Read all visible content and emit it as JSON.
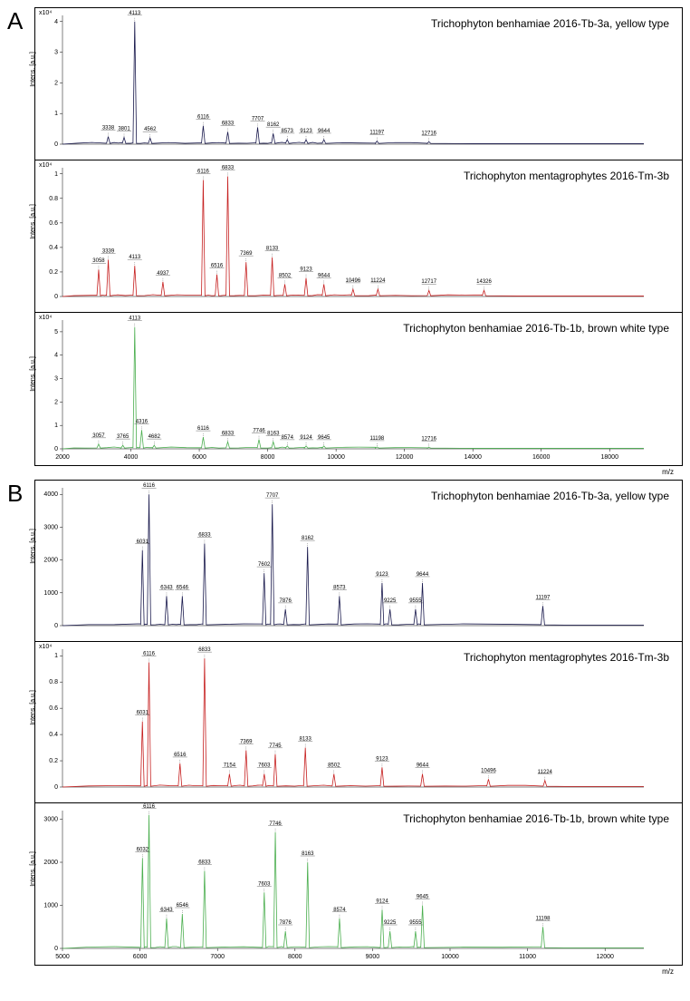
{
  "figureA": {
    "label": "A",
    "xaxis_label": "m/z",
    "xlim": [
      2000,
      19000
    ],
    "xticks": [
      2000,
      4000,
      6000,
      8000,
      10000,
      12000,
      14000,
      16000,
      18000
    ],
    "panels": [
      {
        "title": "Trichophyton benhamiae 2016-Tb-3a, yellow type",
        "color": "#1a1a4d",
        "yaxis_label": "Intens. [a.u.]",
        "yaxis_mult": "x10⁴",
        "ylim": [
          0,
          4.2
        ],
        "yticks": [
          0,
          1,
          2,
          3,
          4
        ],
        "peaks": [
          {
            "mz": 3338,
            "intensity": 0.25,
            "label": "3338"
          },
          {
            "mz": 3801,
            "intensity": 0.22,
            "label": "3801"
          },
          {
            "mz": 4113,
            "intensity": 4.0,
            "label": "4113"
          },
          {
            "mz": 4562,
            "intensity": 0.2,
            "label": "4562"
          },
          {
            "mz": 6116,
            "intensity": 0.6,
            "label": "6116"
          },
          {
            "mz": 6833,
            "intensity": 0.4,
            "label": "6833"
          },
          {
            "mz": 7707,
            "intensity": 0.55,
            "label": "7707"
          },
          {
            "mz": 8162,
            "intensity": 0.35,
            "label": "8162"
          },
          {
            "mz": 8573,
            "intensity": 0.15,
            "label": "8573"
          },
          {
            "mz": 9123,
            "intensity": 0.15,
            "label": "9123"
          },
          {
            "mz": 9644,
            "intensity": 0.15,
            "label": "9644"
          },
          {
            "mz": 11197,
            "intensity": 0.1,
            "label": "11197"
          },
          {
            "mz": 12716,
            "intensity": 0.08,
            "label": "12716"
          }
        ]
      },
      {
        "title": "Trichophyton mentagrophytes 2016-Tm-3b",
        "color": "#c62020",
        "yaxis_label": "Intens. [a.u.]",
        "yaxis_mult": "x10⁴",
        "ylim": [
          0,
          1.05
        ],
        "yticks": [
          0.0,
          0.2,
          0.4,
          0.6,
          0.8,
          1.0
        ],
        "peaks": [
          {
            "mz": 3058,
            "intensity": 0.22,
            "label": "3058"
          },
          {
            "mz": 3339,
            "intensity": 0.3,
            "label": "3339"
          },
          {
            "mz": 4113,
            "intensity": 0.25,
            "label": "4113"
          },
          {
            "mz": 4937,
            "intensity": 0.12,
            "label": "4937"
          },
          {
            "mz": 6116,
            "intensity": 0.95,
            "label": "6116"
          },
          {
            "mz": 6516,
            "intensity": 0.18,
            "label": "6516"
          },
          {
            "mz": 6833,
            "intensity": 0.98,
            "label": "6833"
          },
          {
            "mz": 7369,
            "intensity": 0.28,
            "label": "7369"
          },
          {
            "mz": 8133,
            "intensity": 0.32,
            "label": "8133"
          },
          {
            "mz": 8502,
            "intensity": 0.1,
            "label": "8502"
          },
          {
            "mz": 9123,
            "intensity": 0.15,
            "label": "9123"
          },
          {
            "mz": 9644,
            "intensity": 0.1,
            "label": "9644"
          },
          {
            "mz": 10496,
            "intensity": 0.06,
            "label": "10496"
          },
          {
            "mz": 11224,
            "intensity": 0.06,
            "label": "11224"
          },
          {
            "mz": 12717,
            "intensity": 0.05,
            "label": "12717"
          },
          {
            "mz": 14326,
            "intensity": 0.05,
            "label": "14326"
          }
        ]
      },
      {
        "title": "Trichophyton benhamiae 2016-Tb-1b, brown white type",
        "color": "#4caf50",
        "yaxis_label": "Intens. [a.u.]",
        "yaxis_mult": "x10⁴",
        "ylim": [
          0,
          5.5
        ],
        "yticks": [
          0,
          1,
          2,
          3,
          4,
          5
        ],
        "peaks": [
          {
            "mz": 3057,
            "intensity": 0.2,
            "label": "3057"
          },
          {
            "mz": 3765,
            "intensity": 0.15,
            "label": "3765"
          },
          {
            "mz": 4113,
            "intensity": 5.2,
            "label": "4113"
          },
          {
            "mz": 4316,
            "intensity": 0.8,
            "label": "4316"
          },
          {
            "mz": 4682,
            "intensity": 0.15,
            "label": "4682"
          },
          {
            "mz": 6116,
            "intensity": 0.5,
            "label": "6116"
          },
          {
            "mz": 6833,
            "intensity": 0.3,
            "label": "6833"
          },
          {
            "mz": 7746,
            "intensity": 0.4,
            "label": "7746"
          },
          {
            "mz": 8163,
            "intensity": 0.3,
            "label": "8163"
          },
          {
            "mz": 8574,
            "intensity": 0.12,
            "label": "8574"
          },
          {
            "mz": 9124,
            "intensity": 0.12,
            "label": "9124"
          },
          {
            "mz": 9645,
            "intensity": 0.12,
            "label": "9645"
          },
          {
            "mz": 11198,
            "intensity": 0.08,
            "label": "11198"
          },
          {
            "mz": 12716,
            "intensity": 0.06,
            "label": "12716"
          }
        ]
      }
    ]
  },
  "figureB": {
    "label": "B",
    "xaxis_label": "m/z",
    "xlim": [
      5000,
      12500
    ],
    "xticks": [
      5000,
      6000,
      7000,
      8000,
      9000,
      10000,
      11000,
      12000
    ],
    "panels": [
      {
        "title": "Trichophyton benhamiae 2016-Tb-3a, yellow type",
        "color": "#1a1a4d",
        "yaxis_label": "Intens. [a.u.]",
        "yaxis_mult": "",
        "ylim": [
          0,
          4200
        ],
        "yticks": [
          0,
          1000,
          2000,
          3000,
          4000
        ],
        "peaks": [
          {
            "mz": 6031,
            "intensity": 2300,
            "label": "6031"
          },
          {
            "mz": 6116,
            "intensity": 4000,
            "label": "6116"
          },
          {
            "mz": 6343,
            "intensity": 900,
            "label": "6343"
          },
          {
            "mz": 6546,
            "intensity": 900,
            "label": "6546"
          },
          {
            "mz": 6833,
            "intensity": 2500,
            "label": "6833"
          },
          {
            "mz": 7602,
            "intensity": 1600,
            "label": "7602"
          },
          {
            "mz": 7707,
            "intensity": 3700,
            "label": "7707"
          },
          {
            "mz": 7876,
            "intensity": 500,
            "label": "7876"
          },
          {
            "mz": 8162,
            "intensity": 2400,
            "label": "8162"
          },
          {
            "mz": 8573,
            "intensity": 900,
            "label": "8573"
          },
          {
            "mz": 9123,
            "intensity": 1300,
            "label": "9123"
          },
          {
            "mz": 9225,
            "intensity": 500,
            "label": "9225"
          },
          {
            "mz": 9555,
            "intensity": 500,
            "label": "9555"
          },
          {
            "mz": 9644,
            "intensity": 1300,
            "label": "9644"
          },
          {
            "mz": 11197,
            "intensity": 600,
            "label": "11197"
          }
        ]
      },
      {
        "title": "Trichophyton mentagrophytes 2016-Tm-3b",
        "color": "#c62020",
        "yaxis_label": "Intens. [a.u.]",
        "yaxis_mult": "x10⁴",
        "ylim": [
          0,
          1.05
        ],
        "yticks": [
          0.0,
          0.2,
          0.4,
          0.6,
          0.8,
          1.0
        ],
        "peaks": [
          {
            "mz": 6031,
            "intensity": 0.5,
            "label": "6031"
          },
          {
            "mz": 6116,
            "intensity": 0.95,
            "label": "6116"
          },
          {
            "mz": 6516,
            "intensity": 0.18,
            "label": "6516"
          },
          {
            "mz": 6833,
            "intensity": 0.98,
            "label": "6833"
          },
          {
            "mz": 7154,
            "intensity": 0.1,
            "label": "7154"
          },
          {
            "mz": 7369,
            "intensity": 0.28,
            "label": "7369"
          },
          {
            "mz": 7603,
            "intensity": 0.1,
            "label": "7603"
          },
          {
            "mz": 7745,
            "intensity": 0.25,
            "label": "7745"
          },
          {
            "mz": 8133,
            "intensity": 0.3,
            "label": "8133"
          },
          {
            "mz": 8502,
            "intensity": 0.1,
            "label": "8502"
          },
          {
            "mz": 9123,
            "intensity": 0.15,
            "label": "9123"
          },
          {
            "mz": 9644,
            "intensity": 0.1,
            "label": "9644"
          },
          {
            "mz": 10496,
            "intensity": 0.06,
            "label": "10496"
          },
          {
            "mz": 11224,
            "intensity": 0.05,
            "label": "11224"
          }
        ]
      },
      {
        "title": "Trichophyton benhamiae 2016-Tb-1b, brown white type",
        "color": "#4caf50",
        "yaxis_label": "Intens. [a.u.]",
        "yaxis_mult": "",
        "ylim": [
          0,
          3200
        ],
        "yticks": [
          0,
          1000,
          2000,
          3000
        ],
        "peaks": [
          {
            "mz": 6032,
            "intensity": 2100,
            "label": "6032"
          },
          {
            "mz": 6116,
            "intensity": 3100,
            "label": "6116"
          },
          {
            "mz": 6343,
            "intensity": 700,
            "label": "6343"
          },
          {
            "mz": 6546,
            "intensity": 800,
            "label": "6546"
          },
          {
            "mz": 6833,
            "intensity": 1800,
            "label": "6833"
          },
          {
            "mz": 7603,
            "intensity": 1300,
            "label": "7603"
          },
          {
            "mz": 7746,
            "intensity": 2700,
            "label": "7746"
          },
          {
            "mz": 7876,
            "intensity": 400,
            "label": "7876"
          },
          {
            "mz": 8163,
            "intensity": 2000,
            "label": "8163"
          },
          {
            "mz": 8574,
            "intensity": 700,
            "label": "8574"
          },
          {
            "mz": 9124,
            "intensity": 900,
            "label": "9124"
          },
          {
            "mz": 9225,
            "intensity": 400,
            "label": "9225"
          },
          {
            "mz": 9555,
            "intensity": 400,
            "label": "9555"
          },
          {
            "mz": 9645,
            "intensity": 1000,
            "label": "9645"
          },
          {
            "mz": 11198,
            "intensity": 500,
            "label": "11198"
          }
        ]
      }
    ]
  },
  "colors": {
    "background": "#ffffff",
    "axis": "#000000",
    "text": "#000000"
  },
  "typography": {
    "title_fontsize": 12,
    "peak_label_fontsize": 6,
    "tick_fontsize": 7,
    "figure_label_fontsize": 26
  }
}
